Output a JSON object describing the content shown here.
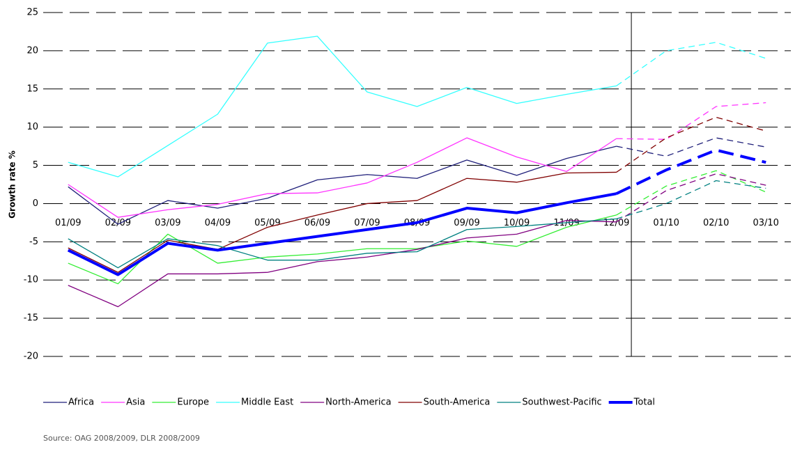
{
  "chart_data": {
    "type": "line",
    "y_label": "Growth rate %",
    "source": "Source: OAG 2008/2009, DLR 2008/2009",
    "categories": [
      "01/09",
      "02/09",
      "03/09",
      "04/09",
      "05/09",
      "06/09",
      "07/09",
      "08/09",
      "09/09",
      "10/09",
      "11/09",
      "12/09",
      "01/10",
      "02/10",
      "03/10"
    ],
    "dashed_from": "12/09",
    "ylim": [
      -20,
      25
    ],
    "yticks": [
      25,
      20,
      15,
      10,
      5,
      0,
      -5,
      -10,
      -15,
      -20
    ],
    "grid": true,
    "legend": "bottom",
    "series": [
      {
        "name": "Africa",
        "color": "#1f1f7a",
        "width": 1.3,
        "values": [
          2.2,
          -2.7,
          0.4,
          -0.6,
          0.7,
          3.1,
          3.8,
          3.3,
          5.7,
          3.7,
          5.9,
          7.5,
          6.2,
          8.6,
          7.4
        ]
      },
      {
        "name": "Asia",
        "color": "#ff33ff",
        "width": 1.3,
        "values": [
          2.5,
          -1.8,
          -0.8,
          -0.1,
          1.3,
          1.4,
          2.7,
          5.4,
          8.6,
          6.1,
          4.2,
          8.5,
          8.4,
          12.7,
          13.2
        ]
      },
      {
        "name": "Europe",
        "color": "#33ee33",
        "width": 1.3,
        "values": [
          -7.8,
          -10.5,
          -4.0,
          -7.8,
          -7.0,
          -6.6,
          -5.9,
          -5.9,
          -4.9,
          -5.6,
          -3.1,
          -1.5,
          2.3,
          4.3,
          1.5
        ]
      },
      {
        "name": "Middle East",
        "color": "#33ffff",
        "width": 1.3,
        "values": [
          5.4,
          3.5,
          7.6,
          11.7,
          21.0,
          21.9,
          14.6,
          12.7,
          15.2,
          13.1,
          14.3,
          15.4,
          20.0,
          21.1,
          19.0
        ]
      },
      {
        "name": "North-America",
        "color": "#800080",
        "width": 1.3,
        "values": [
          -10.7,
          -13.5,
          -9.2,
          -9.2,
          -9.0,
          -7.6,
          -7.0,
          -6.0,
          -4.5,
          -4.0,
          -2.2,
          -2.4,
          1.7,
          3.9,
          2.4
        ]
      },
      {
        "name": "South-America",
        "color": "#800000",
        "width": 1.3,
        "values": [
          -5.8,
          -9.0,
          -4.8,
          -6.0,
          -3.1,
          -1.5,
          0.0,
          0.4,
          3.3,
          2.8,
          4.0,
          4.1,
          8.6,
          11.3,
          9.5
        ]
      },
      {
        "name": "Southwest-Pacific",
        "color": "#008080",
        "width": 1.3,
        "values": [
          -4.6,
          -8.4,
          -4.6,
          -5.5,
          -7.4,
          -7.4,
          -6.5,
          -6.3,
          -3.4,
          -3.0,
          -2.5,
          -2.0,
          0.0,
          3.0,
          2.0
        ]
      },
      {
        "name": "Total",
        "color": "#0000ff",
        "width": 4,
        "values": [
          -6.1,
          -9.3,
          -5.2,
          -6.1,
          -5.2,
          -4.3,
          -3.4,
          -2.5,
          -0.6,
          -1.2,
          0.1,
          1.3,
          4.4,
          7.0,
          5.4
        ]
      }
    ]
  }
}
